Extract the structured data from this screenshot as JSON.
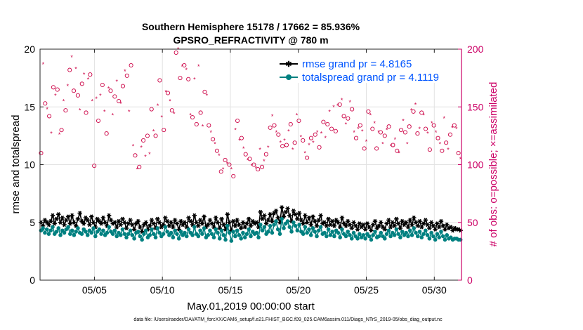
{
  "chart_data": {
    "type": "line",
    "title_line1": "Southern Hemisphere 15178 / 17662 = 85.936%",
    "title_line2": "GPSRO_REFRACTIVITY @ 780 m",
    "xlabel": "May.01,2019 00:00:00 start",
    "ylabel_left": "rmse and totalspread",
    "ylabel_right": "# of obs: o=possible; ×=assimilated",
    "footnote": "data file: /Users/raeder/DAI/ATM_forcXX/CAM6_setup/f.e21.FHIST_BGC.f09_025.CAM6assim.011/Diags_NTrS_2019-05/obs_diag_output.nc",
    "x_ticks": [
      "05/05",
      "05/10",
      "05/15",
      "05/20",
      "05/25",
      "05/30"
    ],
    "x_tick_days": [
      5,
      10,
      15,
      20,
      25,
      30
    ],
    "xlim_days": [
      1,
      32
    ],
    "ylim_left": [
      0,
      20
    ],
    "yticks_left": [
      "0",
      "5",
      "10",
      "15",
      "20"
    ],
    "ylim_right": [
      0,
      200
    ],
    "yticks_right": [
      "0",
      "50",
      "100",
      "150",
      "200"
    ],
    "grid": true,
    "legend_position": "top-right",
    "colors": {
      "rmse": "#000000",
      "spread": "#008080",
      "obs": "#cc0044",
      "axis_right": "#cc0066",
      "legend_text": "#0055ff"
    },
    "series": [
      {
        "name": "rmse grand pr = 4.8165",
        "values": [
          5.0,
          4.7,
          5.2,
          5.0,
          4.8,
          5.1,
          5.6,
          4.9,
          5.3,
          5.7,
          5.0,
          5.4,
          4.8,
          5.2,
          5.5,
          4.9,
          5.6,
          5.0,
          4.7,
          5.3,
          5.8,
          5.1,
          4.9,
          5.4,
          5.2,
          4.8,
          5.5,
          5.0,
          4.6,
          5.3,
          5.1,
          4.9,
          5.4,
          5.0,
          4.7,
          5.6,
          5.2,
          4.9,
          5.0,
          4.6,
          5.1,
          4.8,
          5.3,
          5.0,
          4.5,
          4.9,
          5.2,
          4.8,
          4.4,
          4.9,
          5.1,
          4.6,
          4.2,
          4.8,
          5.0,
          4.4,
          4.7,
          5.2,
          4.9,
          4.5,
          5.3,
          5.0,
          4.6,
          4.8,
          5.4,
          5.1,
          4.7,
          5.0,
          4.6,
          5.2,
          4.9,
          4.4,
          5.1,
          4.8,
          5.0,
          4.6,
          5.4,
          5.1,
          4.8,
          5.6,
          5.0,
          4.7,
          5.2,
          4.9,
          5.5,
          4.6,
          4.8,
          5.2,
          4.9,
          4.6,
          5.4,
          5.0,
          4.5,
          5.3,
          4.8,
          4.4,
          5.7,
          5.0,
          4.3,
          5.1,
          4.7,
          5.2,
          4.8,
          4.5,
          5.0,
          4.6,
          4.9,
          5.3,
          4.7,
          5.1,
          4.9,
          5.0,
          4.6,
          5.9,
          5.3,
          5.6,
          4.9,
          5.2,
          5.7,
          5.1,
          5.8,
          6.0,
          5.4,
          5.0,
          6.3,
          5.5,
          5.9,
          6.2,
          5.6,
          5.1,
          6.0,
          5.7,
          5.3,
          5.8,
          5.2,
          4.9,
          5.6,
          5.0,
          5.4,
          4.8,
          5.5,
          5.1,
          4.7,
          5.2,
          5.6,
          4.9,
          5.0,
          4.7,
          5.3,
          4.8,
          5.1,
          4.7,
          5.2,
          5.0,
          4.6,
          5.4,
          4.9,
          4.7,
          5.1,
          4.8,
          4.5,
          5.0,
          4.7,
          4.4,
          4.9,
          4.6,
          4.8,
          4.4,
          4.9,
          4.6,
          4.3,
          4.8,
          5.1,
          4.5,
          4.7,
          5.0,
          4.6,
          4.4,
          4.9,
          5.2,
          4.6,
          5.0,
          4.7,
          5.3,
          4.9,
          4.5,
          5.1,
          4.8,
          5.0,
          4.6,
          5.2,
          4.8,
          5.4,
          5.0,
          4.7,
          5.1,
          4.6,
          4.9,
          5.2,
          4.8,
          4.5,
          5.0,
          4.7,
          4.4,
          4.9,
          4.6,
          5.1,
          4.7,
          4.4,
          4.8,
          4.5,
          4.6,
          4.3,
          4.5,
          4.4,
          4.4,
          4.3
        ]
      },
      {
        "name": "totalspread grand pr = 4.1119",
        "values": [
          4.3,
          4.5,
          4.1,
          4.4,
          4.0,
          4.3,
          4.6,
          4.0,
          4.2,
          4.5,
          3.9,
          4.3,
          4.1,
          4.4,
          4.6,
          4.0,
          4.3,
          3.9,
          4.2,
          4.5,
          4.1,
          4.0,
          4.4,
          4.2,
          3.9,
          4.3,
          4.1,
          4.5,
          3.8,
          4.2,
          4.4,
          4.0,
          4.3,
          3.9,
          4.1,
          4.6,
          4.2,
          4.0,
          4.3,
          3.8,
          4.1,
          3.9,
          4.4,
          4.0,
          3.7,
          4.0,
          4.3,
          3.9,
          3.6,
          4.1,
          4.2,
          3.8,
          3.5,
          4.0,
          4.3,
          3.7,
          3.9,
          4.4,
          4.0,
          3.7,
          4.5,
          4.1,
          3.8,
          4.0,
          4.6,
          4.2,
          3.9,
          4.1,
          3.7,
          4.3,
          4.0,
          3.6,
          4.2,
          3.9,
          4.1,
          3.8,
          4.4,
          4.1,
          3.9,
          4.6,
          4.0,
          3.8,
          4.3,
          4.0,
          4.5,
          3.7,
          3.9,
          4.3,
          4.0,
          3.7,
          4.4,
          4.1,
          3.6,
          4.3,
          3.9,
          3.5,
          4.7,
          4.1,
          3.4,
          4.2,
          3.8,
          4.3,
          3.9,
          3.6,
          4.1,
          3.7,
          4.0,
          4.4,
          3.8,
          4.2,
          4.0,
          4.1,
          3.7,
          4.8,
          4.3,
          4.6,
          4.0,
          4.2,
          4.7,
          4.1,
          4.8,
          5.1,
          4.4,
          4.0,
          5.3,
          4.5,
          4.9,
          5.1,
          4.6,
          4.2,
          5.0,
          4.7,
          4.3,
          4.8,
          4.2,
          4.0,
          4.6,
          4.1,
          4.4,
          3.9,
          4.5,
          4.2,
          3.8,
          4.3,
          4.6,
          4.0,
          4.1,
          3.8,
          4.4,
          3.9,
          4.2,
          3.8,
          4.3,
          4.1,
          3.7,
          4.4,
          4.0,
          3.8,
          4.2,
          3.9,
          3.6,
          4.1,
          3.8,
          3.6,
          4.0,
          3.7,
          3.9,
          3.6,
          4.0,
          3.8,
          3.5,
          3.9,
          4.2,
          3.7,
          3.8,
          4.1,
          3.8,
          3.6,
          4.0,
          4.3,
          3.8,
          4.1,
          3.9,
          4.4,
          4.0,
          3.7,
          4.2,
          3.9,
          4.1,
          3.8,
          4.3,
          3.9,
          4.5,
          4.1,
          3.8,
          4.2,
          3.7,
          4.0,
          4.3,
          3.9,
          3.6,
          4.1,
          3.8,
          3.5,
          4.0,
          3.7,
          4.2,
          3.8,
          3.5,
          3.9,
          3.6,
          3.7,
          3.5,
          3.6,
          3.6,
          3.5,
          3.5
        ]
      }
    ],
    "obs_possible": [
      110,
      187,
      153,
      148,
      142,
      127,
      167,
      160,
      165,
      126,
      130,
      155,
      147,
      168,
      182,
      193,
      164,
      183,
      160,
      147,
      170,
      178,
      145,
      174,
      178,
      155,
      99,
      157,
      138,
      160,
      169,
      146,
      127,
      166,
      164,
      143,
      159,
      172,
      155,
      153,
      168,
      181,
      177,
      146,
      186,
      116,
      108,
      96,
      98,
      115,
      121,
      107,
      125,
      109,
      148,
      129,
      125,
      151,
      173,
      141,
      130,
      163,
      162,
      155,
      147,
      144,
      197,
      200,
      175,
      185,
      186,
      182,
      174,
      143,
      141,
      174,
      135,
      185,
      145,
      133,
      163,
      160,
      134,
      128,
      122,
      118,
      112,
      108,
      94,
      96,
      104,
      101,
      100,
      96,
      90,
      130,
      138,
      121,
      123,
      114,
      109,
      104,
      105,
      99,
      100,
      97,
      96,
      113,
      98,
      103,
      109,
      115,
      132,
      142,
      134,
      128,
      126,
      119,
      116,
      121,
      117,
      129,
      135,
      113,
      119,
      143,
      138,
      124,
      121,
      110,
      106,
      117,
      123,
      119,
      126,
      128,
      115,
      127,
      137,
      123,
      135,
      146,
      131,
      150,
      129,
      151,
      152,
      156,
      142,
      135,
      140,
      154,
      148,
      128,
      123,
      131,
      134,
      129,
      114,
      120,
      146,
      143,
      131,
      136,
      114,
      128,
      128,
      118,
      125,
      130,
      133,
      116,
      117,
      122,
      112,
      110,
      130,
      138,
      128,
      118,
      133,
      147,
      146,
      152,
      127,
      131,
      145,
      143,
      131,
      127,
      113,
      136,
      134,
      128,
      123,
      118,
      112,
      140,
      119,
      113,
      126,
      132,
      134,
      131,
      110,
      105
    ]
  }
}
